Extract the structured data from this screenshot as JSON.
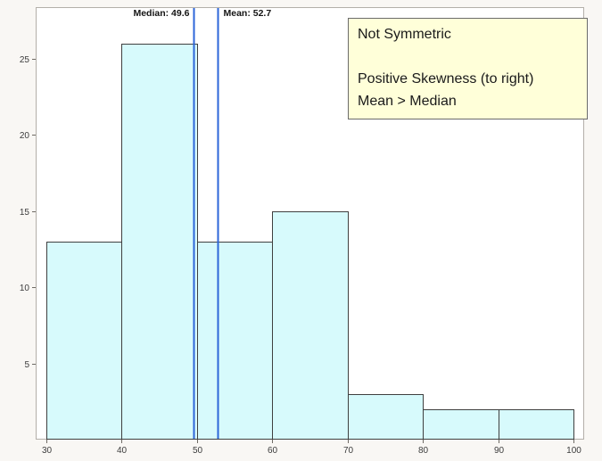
{
  "chart_data": {
    "type": "bar",
    "subtype": "histogram",
    "title": "",
    "xlabel": "",
    "ylabel": "",
    "bins": [
      [
        30,
        40
      ],
      [
        40,
        50
      ],
      [
        50,
        60
      ],
      [
        60,
        70
      ],
      [
        70,
        80
      ],
      [
        80,
        90
      ],
      [
        90,
        100
      ]
    ],
    "counts": [
      13,
      26,
      13,
      15,
      3,
      2,
      2
    ],
    "xlim": [
      30,
      100
    ],
    "ylim": [
      0,
      28.4
    ],
    "x_ticks": [
      30,
      40,
      50,
      60,
      70,
      80,
      90,
      100
    ],
    "y_ticks": [
      5,
      10,
      15,
      20,
      25
    ],
    "grid": false,
    "legend": "none",
    "ref_lines": [
      {
        "name": "median",
        "label": "Median: 49.6",
        "value": 49.6,
        "label_side": "left"
      },
      {
        "name": "mean",
        "label": "Mean: 52.7",
        "value": 52.7,
        "label_side": "right"
      }
    ],
    "colors": {
      "bar_fill": "#d7fafc",
      "bar_stroke": "#3f3f3f",
      "ref_line": "#2d66d9",
      "ref_label": "#141414",
      "tick_label": "#3c3c3c",
      "tick_mark": "#6e6a64",
      "plot_bg": "#ffffff",
      "plot_border": "#b3afa9"
    }
  },
  "annotation": {
    "lines": [
      "Not Symmetric",
      "",
      "Positive Skewness (to right)",
      "Mean > Median"
    ],
    "bg": "#ffffd9",
    "border": "#6b6b6b"
  }
}
